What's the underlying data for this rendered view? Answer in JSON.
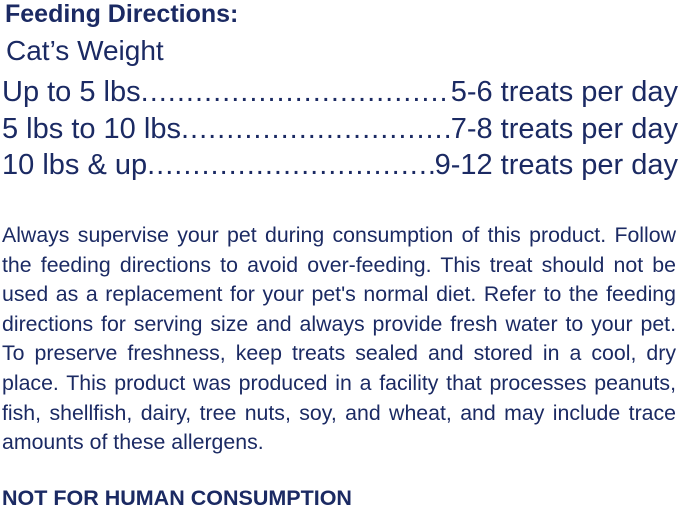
{
  "heading": "Feeding Directions:",
  "subheading": "Cat’s Weight",
  "rows": [
    {
      "weight": "Up to 5 lbs",
      "amount": "5-6 treats per day"
    },
    {
      "weight": "5 lbs to 10 lbs",
      "amount": "7-8 treats per day"
    },
    {
      "weight": "10 lbs & up",
      "amount": "9-12 treats per day"
    }
  ],
  "paragraph": "Always supervise your pet during consumption of this product. Follow the feeding directions to avoid over-feeding. This treat should not be used as a replacement for your pet's normal diet. Refer to the feeding directions for serving size and always provide fresh water to your pet. To preserve freshness, keep treats sealed and stored in a cool, dry place. This product was produced in a facility that processes peanuts, fish, shellfish, dairy, tree nuts, soy, and wheat, and may include trace amounts of these allergens.",
  "warning": "NOT FOR HUMAN CONSUMPTION",
  "colors": {
    "text": "#1b2a63"
  }
}
